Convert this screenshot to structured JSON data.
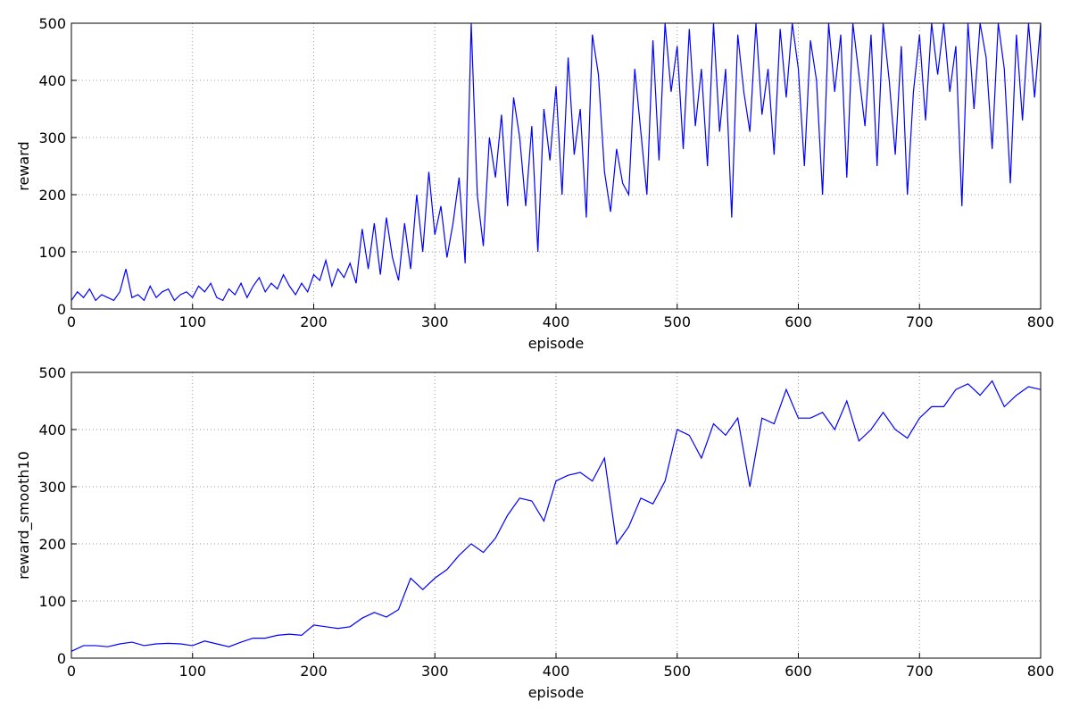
{
  "chart_data": [
    {
      "type": "line",
      "xlabel": "episode",
      "ylabel": "reward",
      "color": "#0000ff",
      "grid": true,
      "xlim": [
        0,
        800
      ],
      "ylim": [
        0,
        500
      ],
      "xticks": [
        0,
        100,
        200,
        300,
        400,
        500,
        600,
        700,
        800
      ],
      "yticks": [
        0,
        100,
        200,
        300,
        400,
        500
      ],
      "x": [
        0,
        5,
        10,
        15,
        20,
        25,
        30,
        35,
        40,
        45,
        50,
        55,
        60,
        65,
        70,
        75,
        80,
        85,
        90,
        95,
        100,
        105,
        110,
        115,
        120,
        125,
        130,
        135,
        140,
        145,
        150,
        155,
        160,
        165,
        170,
        175,
        180,
        185,
        190,
        195,
        200,
        205,
        210,
        215,
        220,
        225,
        230,
        235,
        240,
        245,
        250,
        255,
        260,
        265,
        270,
        275,
        280,
        285,
        290,
        295,
        300,
        305,
        310,
        315,
        320,
        325,
        330,
        335,
        340,
        345,
        350,
        355,
        360,
        365,
        370,
        375,
        380,
        385,
        390,
        395,
        400,
        405,
        410,
        415,
        420,
        425,
        430,
        435,
        440,
        445,
        450,
        455,
        460,
        465,
        470,
        475,
        480,
        485,
        490,
        495,
        500,
        505,
        510,
        515,
        520,
        525,
        530,
        535,
        540,
        545,
        550,
        555,
        560,
        565,
        570,
        575,
        580,
        585,
        590,
        595,
        600,
        605,
        610,
        615,
        620,
        625,
        630,
        635,
        640,
        645,
        650,
        655,
        660,
        665,
        670,
        675,
        680,
        685,
        690,
        695,
        700,
        705,
        710,
        715,
        720,
        725,
        730,
        735,
        740,
        745,
        750,
        755,
        760,
        765,
        770,
        775,
        780,
        785,
        790,
        795,
        800
      ],
      "values": [
        15,
        30,
        20,
        35,
        15,
        25,
        20,
        15,
        30,
        70,
        20,
        25,
        15,
        40,
        20,
        30,
        35,
        15,
        25,
        30,
        20,
        40,
        30,
        45,
        20,
        15,
        35,
        25,
        45,
        20,
        40,
        55,
        30,
        45,
        35,
        60,
        40,
        25,
        45,
        30,
        60,
        50,
        85,
        40,
        70,
        55,
        80,
        45,
        140,
        70,
        150,
        60,
        160,
        90,
        50,
        150,
        70,
        200,
        100,
        240,
        130,
        180,
        90,
        150,
        230,
        80,
        500,
        200,
        110,
        300,
        230,
        340,
        180,
        370,
        300,
        180,
        320,
        100,
        350,
        260,
        390,
        200,
        440,
        270,
        350,
        160,
        480,
        410,
        240,
        170,
        280,
        220,
        200,
        420,
        310,
        200,
        470,
        260,
        500,
        380,
        460,
        280,
        490,
        320,
        420,
        250,
        500,
        310,
        420,
        160,
        480,
        380,
        310,
        500,
        340,
        420,
        270,
        490,
        370,
        500,
        420,
        250,
        470,
        400,
        200,
        500,
        380,
        480,
        230,
        500,
        410,
        320,
        480,
        250,
        500,
        400,
        270,
        460,
        200,
        380,
        480,
        330,
        500,
        410,
        500,
        380,
        460,
        180,
        500,
        350,
        500,
        440,
        280,
        500,
        420,
        220,
        480,
        330,
        500,
        370,
        500
      ]
    },
    {
      "type": "line",
      "xlabel": "episode",
      "ylabel": "reward_smooth10",
      "color": "#0000ff",
      "grid": true,
      "xlim": [
        0,
        800
      ],
      "ylim": [
        0,
        500
      ],
      "xticks": [
        0,
        100,
        200,
        300,
        400,
        500,
        600,
        700,
        800
      ],
      "yticks": [
        0,
        100,
        200,
        300,
        400,
        500
      ],
      "x": [
        0,
        10,
        20,
        30,
        40,
        50,
        60,
        70,
        80,
        90,
        100,
        110,
        120,
        130,
        140,
        150,
        160,
        170,
        180,
        190,
        200,
        210,
        220,
        230,
        240,
        250,
        260,
        270,
        280,
        290,
        300,
        310,
        320,
        330,
        340,
        350,
        360,
        370,
        380,
        390,
        400,
        410,
        420,
        430,
        440,
        450,
        460,
        470,
        480,
        490,
        500,
        510,
        520,
        530,
        540,
        550,
        560,
        570,
        580,
        590,
        600,
        610,
        620,
        630,
        640,
        650,
        660,
        670,
        680,
        690,
        700,
        710,
        720,
        730,
        740,
        750,
        760,
        770,
        780,
        790,
        800
      ],
      "values": [
        12,
        22,
        22,
        20,
        25,
        28,
        22,
        25,
        26,
        25,
        22,
        30,
        25,
        20,
        28,
        35,
        35,
        40,
        42,
        40,
        58,
        55,
        52,
        55,
        70,
        80,
        72,
        85,
        140,
        120,
        140,
        155,
        180,
        200,
        185,
        210,
        250,
        280,
        275,
        240,
        310,
        320,
        325,
        310,
        350,
        200,
        230,
        280,
        270,
        310,
        400,
        390,
        350,
        410,
        390,
        420,
        300,
        420,
        410,
        470,
        420,
        420,
        430,
        400,
        450,
        380,
        400,
        430,
        400,
        385,
        420,
        440,
        440,
        470,
        480,
        460,
        485,
        440,
        460,
        475,
        470
      ]
    }
  ]
}
